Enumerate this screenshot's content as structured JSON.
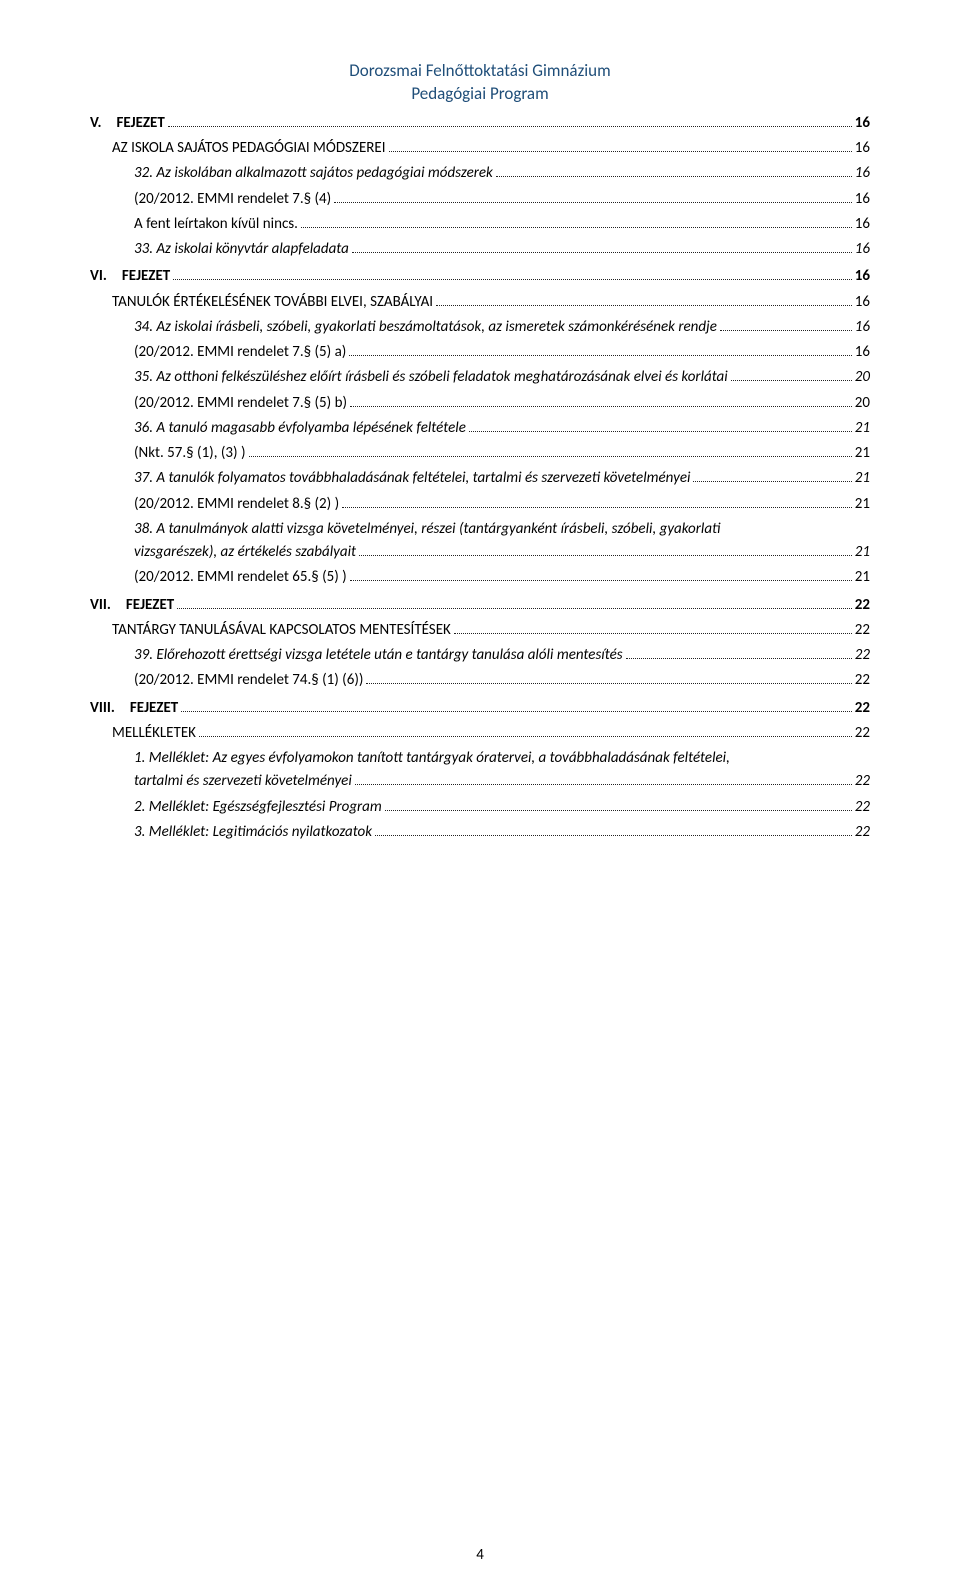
{
  "header": {
    "line1": "Dorozsmai Felnőttoktatási Gimnázium",
    "line2": "Pedagógiai Program"
  },
  "toc": [
    {
      "level": "lvl1",
      "text": "V. FEJEZET",
      "page": "16"
    },
    {
      "level": "lvl2",
      "text": "AZ ISKOLA SAJÁTOS PEDAGÓGIAI MÓDSZEREI",
      "page": "16"
    },
    {
      "level": "lvl3",
      "text": "32. Az iskolában alkalmazott sajátos pedagógiai módszerek",
      "page": "16"
    },
    {
      "level": "lvl4",
      "text": "(20/2012. EMMI rendelet 7.§ (4)",
      "page": "16"
    },
    {
      "level": "lvl4",
      "text": "A fent leírtakon kívül nincs.",
      "page": "16"
    },
    {
      "level": "lvl3",
      "text": "33. Az iskolai könyvtár alapfeladata",
      "page": "16"
    },
    {
      "level": "lvl1",
      "text": "VI. FEJEZET",
      "page": "16"
    },
    {
      "level": "lvl2",
      "text": "TANULÓK ÉRTÉKELÉSÉNEK TOVÁBBI ELVEI, SZABÁLYAI",
      "page": "16"
    },
    {
      "level": "lvl3",
      "text": "34. Az iskolai írásbeli, szóbeli, gyakorlati beszámoltatások, az ismeretek számonkérésének rendje",
      "page": "16"
    },
    {
      "level": "lvl4",
      "text": "(20/2012. EMMI rendelet 7.§ (5) a)",
      "page": "16"
    },
    {
      "level": "lvl3",
      "text": "35. Az otthoni felkészüléshez előírt írásbeli és szóbeli feladatok meghatározásának elvei és korlátai",
      "page": "20"
    },
    {
      "level": "lvl4",
      "text": "(20/2012. EMMI rendelet 7.§ (5) b)",
      "page": "20"
    },
    {
      "level": "lvl3",
      "text": "36. A tanuló magasabb évfolyamba lépésének feltétele",
      "page": "21"
    },
    {
      "level": "lvl4",
      "text": "(Nkt. 57.§ (1), (3) )",
      "page": "21"
    },
    {
      "level": "lvl3",
      "text": "37. A tanulók folyamatos továbbhaladásának feltételei, tartalmi és szervezeti követelményei",
      "page": "21"
    },
    {
      "level": "lvl4",
      "text": "(20/2012. EMMI rendelet 8.§ (2) )",
      "page": "21"
    },
    {
      "level": "lvl3-multi",
      "text_lines": [
        "38. A tanulmányok alatti vizsga követelményei, részei (tantárgyanként írásbeli, szóbeli, gyakorlati",
        "vizsgarészek), az értékelés szabályait"
      ],
      "page": "21"
    },
    {
      "level": "lvl4",
      "text": "(20/2012. EMMI rendelet 65.§ (5) )",
      "page": "21"
    },
    {
      "level": "lvl1",
      "text": "VII. FEJEZET",
      "page": "22"
    },
    {
      "level": "lvl2",
      "text": "TANTÁRGY TANULÁSÁVAL KAPCSOLATOS MENTESÍTÉSEK",
      "page": "22"
    },
    {
      "level": "lvl3",
      "text": "39. Előrehozott érettségi vizsga letétele után e tantárgy tanulása alóli mentesítés",
      "page": "22"
    },
    {
      "level": "lvl4",
      "text": "(20/2012. EMMI rendelet 74.§ (1) (6))",
      "page": "22"
    },
    {
      "level": "lvl1",
      "text": "VIII. FEJEZET",
      "page": "22"
    },
    {
      "level": "lvl2",
      "text": "MELLÉKLETEK",
      "page": "22"
    },
    {
      "level": "lvl3-multi",
      "text_lines": [
        "1.  Melléklet: Az egyes évfolyamokon tanított tantárgyak óratervei, a továbbhaladásának feltételei,",
        "tartalmi és szervezeti követelményei"
      ],
      "page": "22"
    },
    {
      "level": "lvl3",
      "text": "2.  Melléklet:  Egészségfejlesztési Program",
      "page": "22"
    },
    {
      "level": "lvl3",
      "text": "3.  Melléklet:  Legitimációs nyilatkozatok",
      "page": "22"
    }
  ],
  "pageNumber": "4",
  "colors": {
    "header": "#1f4e79",
    "text": "#000000",
    "background": "#ffffff"
  },
  "font": {
    "family": "Calibri",
    "header_size_pt": 13,
    "body_size_pt": 11
  }
}
